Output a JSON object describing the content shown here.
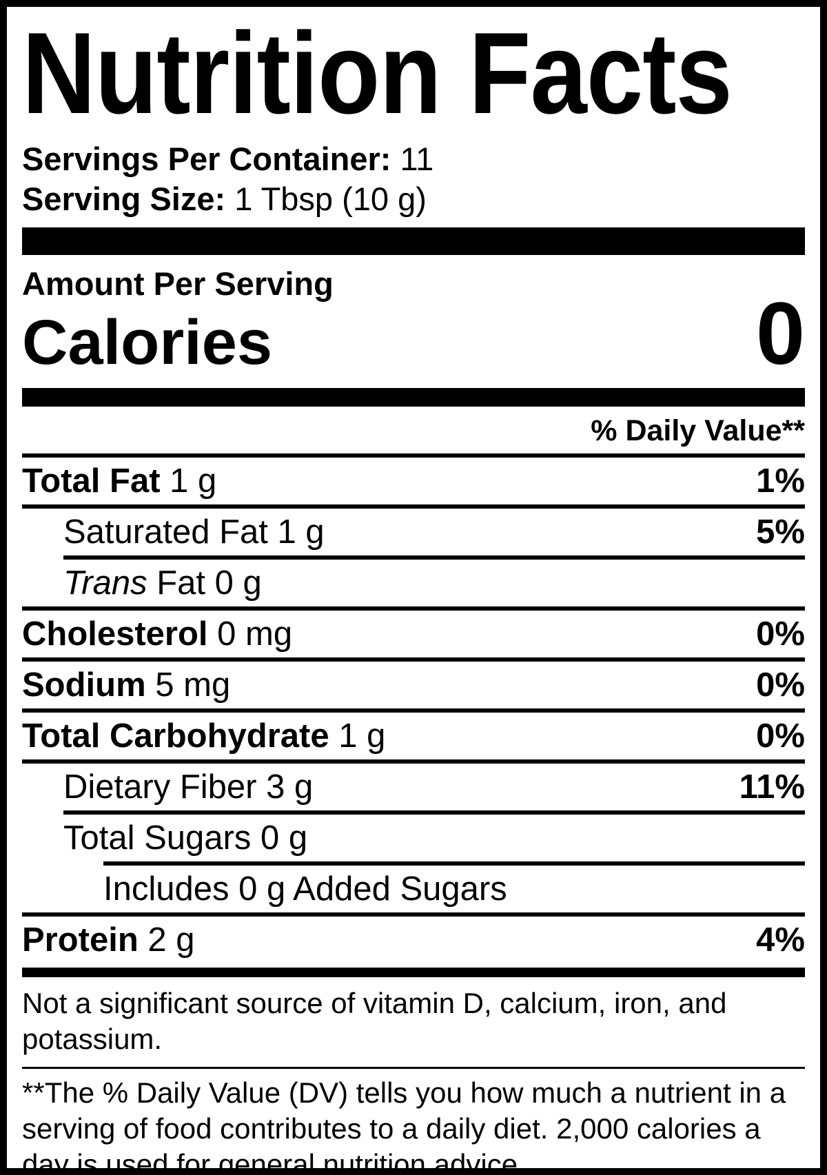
{
  "colors": {
    "ink": "#000000",
    "paper": "#ffffff"
  },
  "label": {
    "title": "Nutrition Facts",
    "servings_per_container": {
      "label": "Servings Per Container:",
      "value": "11"
    },
    "serving_size": {
      "label": "Serving Size:",
      "value": "1 Tbsp (10 g)"
    },
    "amount_per_serving": "Amount Per Serving",
    "calories": {
      "label": "Calories",
      "value": "0"
    },
    "daily_value_header": "% Daily Value**",
    "nutrients": [
      {
        "key": "total-fat",
        "name": "Total Fat",
        "bold": true,
        "amount": "1 g",
        "dv": "1%",
        "indent": 0,
        "sep_after": "full"
      },
      {
        "key": "saturated-fat",
        "name": "Saturated Fat",
        "bold": false,
        "amount": "1 g",
        "dv": "5%",
        "indent": 1,
        "sep_after": "ind1"
      },
      {
        "key": "trans-fat",
        "name_italic": "Trans",
        "name": " Fat",
        "bold": false,
        "amount": "0 g",
        "dv": "",
        "indent": 1,
        "sep_after": "full"
      },
      {
        "key": "cholesterol",
        "name": "Cholesterol",
        "bold": true,
        "amount": "0 mg",
        "dv": "0%",
        "indent": 0,
        "sep_after": "full"
      },
      {
        "key": "sodium",
        "name": "Sodium",
        "bold": true,
        "amount": "5 mg",
        "dv": "0%",
        "indent": 0,
        "sep_after": "full"
      },
      {
        "key": "total-carbohydrate",
        "name": "Total Carbohydrate",
        "bold": true,
        "amount": "1 g",
        "dv": "0%",
        "indent": 0,
        "sep_after": "full"
      },
      {
        "key": "dietary-fiber",
        "name": "Dietary Fiber",
        "bold": false,
        "amount": "3 g",
        "dv": "11%",
        "indent": 1,
        "sep_after": "ind1"
      },
      {
        "key": "total-sugars",
        "name": "Total Sugars",
        "bold": false,
        "amount": "0 g",
        "dv": "",
        "indent": 1,
        "sep_after": "ind2"
      },
      {
        "key": "added-sugars",
        "name": "Includes 0 g Added Sugars",
        "bold": false,
        "amount": "",
        "dv": "",
        "indent": 2,
        "sep_after": "full"
      },
      {
        "key": "protein",
        "name": "Protein",
        "bold": true,
        "amount": "2 g",
        "dv": "4%",
        "indent": 0,
        "sep_after": "none"
      }
    ],
    "footnote_significant": "Not a significant source of vitamin D, calcium, iron, and potassium.",
    "footnote_daily_value": "**The % Daily Value (DV) tells you how much a nutrient in a serving of food contributes to a daily diet. 2,000 calories a day is used for general nutrition advice."
  }
}
